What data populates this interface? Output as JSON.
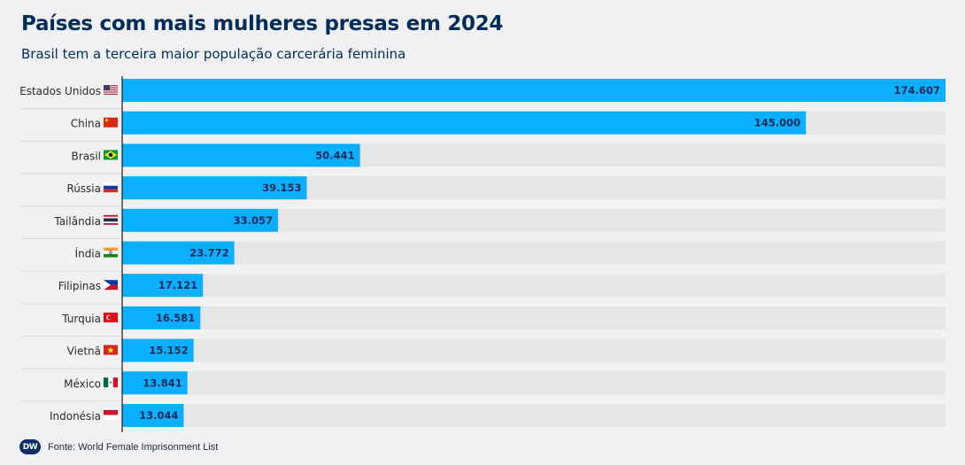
{
  "header": {
    "title": "Países com mais mulheres presas em 2024",
    "subtitle": "Brasil tem a terceira maior população carcerária feminina"
  },
  "footer": {
    "logo_text": "DW",
    "source": "Fonte: World Female Imprisonment List"
  },
  "colors": {
    "bar": "#0ab0ff",
    "track": "#e6e6e9",
    "value_label": "#0b2a55",
    "country_label": "#2a2a2a",
    "title": "#002d5a"
  },
  "chart_data": {
    "type": "bar",
    "orientation": "horizontal",
    "title": "Países com mais mulheres presas em 2024",
    "subtitle": "Brasil tem a terceira maior população carcerária feminina",
    "categories": [
      "Estados Unidos",
      "China",
      "Brasil",
      "Rússia",
      "Tailândia",
      "Índia",
      "Filipinas",
      "Turquia",
      "Vietnã",
      "México",
      "Indonésia"
    ],
    "flags": [
      "us-flag",
      "cn-flag",
      "br-flag",
      "ru-flag",
      "th-flag",
      "in-flag",
      "ph-flag",
      "tr-flag",
      "vn-flag",
      "mx-flag",
      "id-flag"
    ],
    "values": [
      174607,
      145000,
      50441,
      39153,
      33057,
      23772,
      17121,
      16581,
      15152,
      13841,
      13044
    ],
    "value_labels": [
      "174.607",
      "145.000",
      "50.441",
      "39.153",
      "33.057",
      "23.772",
      "17.121",
      "16.581",
      "15.152",
      "13.841",
      "13.044"
    ],
    "xlim": [
      0,
      174607
    ],
    "grid": false,
    "legend": "none"
  }
}
